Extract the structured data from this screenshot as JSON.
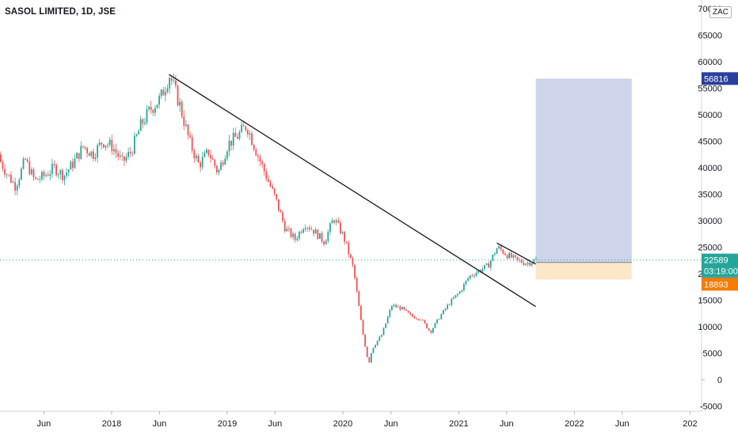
{
  "header": {
    "title": "SASOL LIMITED, 1D, JSE",
    "currency": "ZAC"
  },
  "chart_data": {
    "type": "candlestick",
    "title": "SASOL LIMITED, 1D, JSE",
    "x_ticks": [
      "Jun",
      "2018",
      "Jun",
      "2019",
      "Jun",
      "2020",
      "Jun",
      "2021",
      "Jun",
      "2022",
      "Jun",
      "202"
    ],
    "y_ticks": [
      "70000",
      "65000",
      "60000",
      "55000",
      "50000",
      "45000",
      "40000",
      "35000",
      "30000",
      "25000",
      "20000",
      "15000",
      "10000",
      "5000",
      "0",
      "-5000"
    ],
    "ylim": [
      -5000,
      70000
    ],
    "price_path": [
      [
        "2017-01-01",
        42500
      ],
      [
        "2017-02-01",
        39000
      ],
      [
        "2017-03-01",
        36500
      ],
      [
        "2017-04-01",
        41500
      ],
      [
        "2017-05-01",
        37500
      ],
      [
        "2017-06-01",
        38500
      ],
      [
        "2017-07-01",
        40000
      ],
      [
        "2017-08-01",
        38500
      ],
      [
        "2017-09-01",
        41000
      ],
      [
        "2017-10-01",
        44000
      ],
      [
        "2017-11-01",
        42500
      ],
      [
        "2017-12-01",
        45000
      ],
      [
        "2018-01-01",
        44000
      ],
      [
        "2018-02-01",
        41000
      ],
      [
        "2018-03-01",
        43000
      ],
      [
        "2018-04-01",
        48000
      ],
      [
        "2018-05-01",
        51000
      ],
      [
        "2018-06-01",
        53000
      ],
      [
        "2018-07-01",
        57500
      ],
      [
        "2018-08-01",
        52000
      ],
      [
        "2018-09-01",
        45000
      ],
      [
        "2018-10-01",
        40500
      ],
      [
        "2018-11-01",
        43000
      ],
      [
        "2018-12-01",
        39000
      ],
      [
        "2019-01-01",
        44500
      ],
      [
        "2019-02-01",
        46000
      ],
      [
        "2019-03-01",
        48000
      ],
      [
        "2019-04-01",
        43000
      ],
      [
        "2019-05-01",
        38500
      ],
      [
        "2019-06-01",
        34000
      ],
      [
        "2019-07-01",
        28500
      ],
      [
        "2019-08-01",
        26500
      ],
      [
        "2019-09-01",
        29500
      ],
      [
        "2019-10-01",
        28000
      ],
      [
        "2019-11-01",
        26000
      ],
      [
        "2019-12-01",
        30500
      ],
      [
        "2020-01-01",
        27000
      ],
      [
        "2020-02-01",
        21000
      ],
      [
        "2020-03-01",
        9000
      ],
      [
        "2020-03-20",
        3000
      ],
      [
        "2020-04-01",
        6000
      ],
      [
        "2020-05-01",
        8500
      ],
      [
        "2020-06-01",
        14000
      ],
      [
        "2020-07-01",
        13500
      ],
      [
        "2020-08-01",
        12000
      ],
      [
        "2020-09-01",
        11500
      ],
      [
        "2020-10-01",
        9000
      ],
      [
        "2020-11-01",
        12000
      ],
      [
        "2020-12-01",
        14500
      ],
      [
        "2021-01-01",
        16500
      ],
      [
        "2021-02-01",
        19500
      ],
      [
        "2021-03-01",
        20500
      ],
      [
        "2021-04-01",
        21500
      ],
      [
        "2021-05-01",
        25000
      ],
      [
        "2021-06-01",
        23500
      ],
      [
        "2021-07-01",
        22500
      ],
      [
        "2021-08-01",
        22000
      ],
      [
        "2021-09-01",
        22589
      ]
    ],
    "trendlines": [
      {
        "start": [
          "2018-07-01",
          57600
        ],
        "end": [
          "2021-09-01",
          13800
        ]
      },
      {
        "start": [
          "2021-05-01",
          25800
        ],
        "end": [
          "2021-09-01",
          21800
        ]
      }
    ],
    "position": {
      "entry": 22126,
      "target": 56816,
      "stop": 18893,
      "start": "2021-09-01",
      "end": "2022-07-01"
    },
    "last_price": 22589,
    "countdown": "03:19:00",
    "price_labels": {
      "last": "22589",
      "countdown": "03:19:00",
      "entry": "22126",
      "target": "56816",
      "stop": "18893"
    },
    "colors": {
      "up": "#26a69a",
      "down": "#ef5350",
      "profit_zone": "#c5cde6",
      "loss_zone": "#fde7c9",
      "target_badge": "#2a3f9d",
      "last_badge": "#26a69a",
      "entry_badge": "#787b86",
      "stop_badge": "#f57c00",
      "trendline": "#131722"
    }
  }
}
